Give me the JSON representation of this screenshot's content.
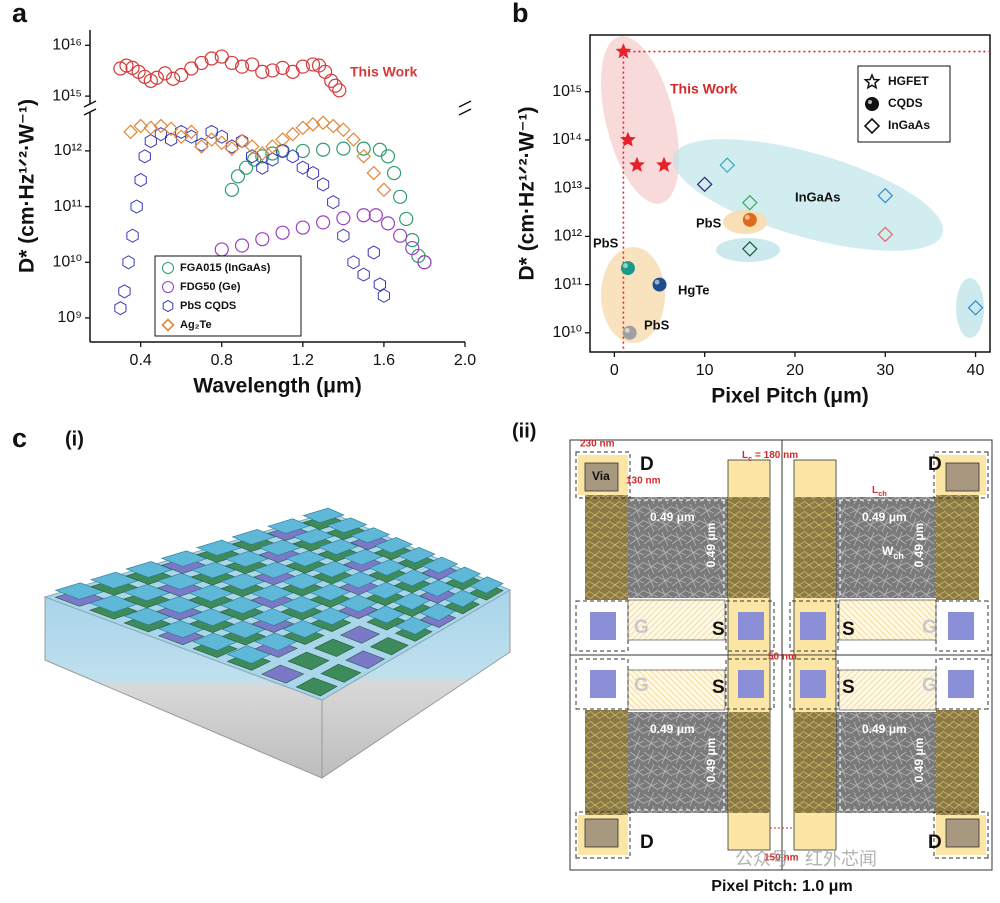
{
  "chart_data": [
    {
      "panel": "a",
      "type": "scatter",
      "xlabel": "Wavelength (μm)",
      "ylabel": "D* (cm·Hz¹ᐟ²·W⁻¹)",
      "xlim": [
        0.15,
        2.0
      ],
      "xticks": [
        0.4,
        0.8,
        1.2,
        1.6,
        {
          "value": 2,
          "label": "2.0"
        }
      ],
      "log_y": true,
      "ylim": [
        370000000.0,
        2e+16
      ],
      "ybreak": [
        5000000000000.0,
        700000000000000.0
      ],
      "yticks": [
        {
          "value": 1000000000.0,
          "label": "10⁹"
        },
        {
          "value": 10000000000.0,
          "label": "10¹⁰"
        },
        {
          "value": 100000000000.0,
          "label": "10¹¹"
        },
        {
          "value": 1000000000000.0,
          "label": "10¹²"
        },
        {
          "value": 1000000000000000.0,
          "label": "10¹⁵"
        },
        {
          "value": 1e+16,
          "label": "10¹⁶"
        }
      ],
      "series": [
        {
          "name": "This Work",
          "direct_label": true,
          "marker": "circle",
          "color": "#d43a3a",
          "x": [
            0.3,
            0.33,
            0.36,
            0.39,
            0.42,
            0.45,
            0.48,
            0.52,
            0.56,
            0.6,
            0.65,
            0.7,
            0.75,
            0.8,
            0.85,
            0.9,
            0.95,
            1.0,
            1.05,
            1.1,
            1.15,
            1.2,
            1.25,
            1.28,
            1.31,
            1.34,
            1.36,
            1.38
          ],
          "values": [
            3500000000000000.0,
            4000000000000000.0,
            3600000000000000.0,
            3000000000000000.0,
            2400000000000000.0,
            2000000000000000.0,
            2300000000000000.0,
            2800000000000000.0,
            2200000000000000.0,
            2600000000000000.0,
            3500000000000000.0,
            4500000000000000.0,
            5500000000000000.0,
            6000000000000000.0,
            4500000000000000.0,
            3800000000000000.0,
            4200000000000000.0,
            3000000000000000.0,
            3200000000000000.0,
            3600000000000000.0,
            3000000000000000.0,
            3800000000000000.0,
            4200000000000000.0,
            4000000000000000.0,
            3000000000000000.0,
            2000000000000000.0,
            1600000000000000.0,
            1300000000000000.0
          ]
        },
        {
          "name": "FGA015 (InGaAs)",
          "marker": "circle",
          "color": "#2e9e6e",
          "x": [
            0.85,
            0.88,
            0.92,
            0.96,
            1.0,
            1.05,
            1.1,
            1.2,
            1.3,
            1.4,
            1.5,
            1.58,
            1.62,
            1.65,
            1.68,
            1.71,
            1.74,
            1.77,
            1.8
          ],
          "values": [
            200000000000.0,
            350000000000.0,
            500000000000.0,
            700000000000.0,
            800000000000.0,
            900000000000.0,
            1000000000000.0,
            1000000000000.0,
            1050000000000.0,
            1100000000000.0,
            1100000000000.0,
            1050000000000.0,
            800000000000.0,
            400000000000.0,
            150000000000.0,
            60000000000.0,
            25000000000.0,
            13000000000.0,
            10000000000.0
          ]
        },
        {
          "name": "FDG50 (Ge)",
          "marker": "circle",
          "color": "#9b3fc4",
          "x": [
            0.8,
            0.9,
            1.0,
            1.1,
            1.2,
            1.3,
            1.4,
            1.5,
            1.56,
            1.62,
            1.68,
            1.74,
            1.8
          ],
          "values": [
            17000000000.0,
            20000000000.0,
            26000000000.0,
            34000000000.0,
            42000000000.0,
            52000000000.0,
            62000000000.0,
            70000000000.0,
            70000000000.0,
            50000000000.0,
            30000000000.0,
            18000000000.0,
            10000000000.0
          ]
        },
        {
          "name": "PbS CQDS",
          "marker": "hexagon",
          "color": "#3a3ab8",
          "x": [
            0.3,
            0.32,
            0.34,
            0.36,
            0.38,
            0.4,
            0.42,
            0.45,
            0.5,
            0.55,
            0.6,
            0.65,
            0.7,
            0.75,
            0.8,
            0.85,
            0.9,
            0.95,
            1.0,
            1.05,
            1.1,
            1.15,
            1.2,
            1.25,
            1.3,
            1.35,
            1.4,
            1.45,
            1.5,
            1.55,
            1.58,
            1.6
          ],
          "values": [
            1500000000.0,
            3000000000.0,
            10000000000.0,
            30000000000.0,
            100000000000.0,
            300000000000.0,
            800000000000.0,
            1500000000000.0,
            2000000000000.0,
            1600000000000.0,
            2200000000000.0,
            1800000000000.0,
            1300000000000.0,
            2200000000000.0,
            1800000000000.0,
            1200000000000.0,
            1500000000000.0,
            800000000000.0,
            500000000000.0,
            700000000000.0,
            1000000000000.0,
            800000000000.0,
            500000000000.0,
            400000000000.0,
            250000000000.0,
            120000000000.0,
            30000000000.0,
            10000000000.0,
            6000000000.0,
            15000000000.0,
            4000000000.0,
            2500000000.0
          ]
        },
        {
          "name": "Ag₂Te",
          "marker": "diamond",
          "color": "#e0883a",
          "x": [
            0.35,
            0.4,
            0.45,
            0.5,
            0.55,
            0.6,
            0.65,
            0.7,
            0.75,
            0.8,
            0.85,
            0.9,
            0.95,
            1.0,
            1.05,
            1.1,
            1.15,
            1.2,
            1.25,
            1.3,
            1.35,
            1.4,
            1.45,
            1.5,
            1.55,
            1.6
          ],
          "values": [
            2200000000000.0,
            2800000000000.0,
            2600000000000.0,
            2800000000000.0,
            2500000000000.0,
            1800000000000.0,
            2200000000000.0,
            1200000000000.0,
            1600000000000.0,
            1400000000000.0,
            1100000000000.0,
            1500000000000.0,
            1200000000000.0,
            900000000000.0,
            1200000000000.0,
            1600000000000.0,
            2000000000000.0,
            2600000000000.0,
            3000000000000.0,
            3200000000000.0,
            2800000000000.0,
            2400000000000.0,
            1600000000000.0,
            800000000000.0,
            400000000000.0,
            200000000000.0
          ]
        }
      ]
    },
    {
      "panel": "b",
      "type": "scatter",
      "xlabel": "Pixel Pitch (μm)",
      "ylabel": "D* (cm·Hz¹ᐟ²·W⁻¹)",
      "xlim": [
        -2.7,
        41.6
      ],
      "xticks": [
        0,
        10,
        20,
        30,
        40
      ],
      "log_y": true,
      "ylim": [
        4000000000.0,
        1.5e+16
      ],
      "yticks": [
        {
          "value": 10000000000.0,
          "label": "10¹⁰"
        },
        {
          "value": 100000000000.0,
          "label": "10¹¹"
        },
        {
          "value": 1000000000000.0,
          "label": "10¹²"
        },
        {
          "value": 10000000000000.0,
          "label": "10¹³"
        },
        {
          "value": 100000000000000.0,
          "label": "10¹⁴"
        },
        {
          "value": 1000000000000000.0,
          "label": "10¹⁵"
        }
      ],
      "legend": "upper right",
      "annotations": [
        "This Work",
        "InGaAs",
        "PbS",
        "PbS",
        "PbS",
        "HgTe"
      ],
      "series": [
        {
          "name": "HGFET",
          "marker": "star",
          "color": "#111111",
          "colors": [
            "#e8202a",
            "#e8202a",
            "#e8202a",
            "#e8202a"
          ],
          "x": [
            1,
            1.5,
            2.5,
            5.5
          ],
          "values": [
            6800000000000000.0,
            100000000000000.0,
            30000000000000.0,
            30000000000000.0
          ]
        },
        {
          "name": "CQDS",
          "marker": "sphere",
          "color": "#111111",
          "colors": [
            "#1a9a8a",
            "#1f4e8c",
            "#a0a0a0",
            "#e06a1a"
          ],
          "x": [
            1.5,
            5,
            1.7,
            15
          ],
          "values": [
            220000000000.0,
            100000000000.0,
            10000000000.0,
            2200000000000.0
          ]
        },
        {
          "name": "InGaAs",
          "marker": "diamond",
          "color": "#111111",
          "colors": [
            "#3aa8c8",
            "#2a2a6e",
            "#3aa860",
            "#1e5a38",
            "#2a8ad0",
            "#d86a6a",
            "#2a8ad0"
          ],
          "x": [
            12.5,
            10,
            15,
            15,
            30,
            30,
            40
          ],
          "values": [
            30000000000000.0,
            12000000000000.0,
            5000000000000.0,
            550000000000.0,
            7000000000000.0,
            1100000000000.0,
            33000000000.0
          ]
        }
      ]
    }
  ],
  "figure_c": {
    "panel": "c",
    "part_i": "(i)",
    "part_ii": "(ii)",
    "layout": {
      "via": "Via",
      "via_width": "230 nm",
      "via_height": "130 nm",
      "lc": {
        "main": "L",
        "sub": "c",
        "rest": " = 180 nm"
      },
      "lch": {
        "main": "L",
        "sub": "ch"
      },
      "wch": {
        "main": "W",
        "sub": "ch"
      },
      "gap_vertical": "50 nm",
      "gap_horizontal": "150 nm",
      "drain": [
        "D",
        "D",
        "D",
        "D"
      ],
      "source": [
        "S",
        "S",
        "S",
        "S"
      ],
      "gate": [
        "G",
        "G",
        "G",
        "G"
      ],
      "channel_width": [
        "0.49 μm",
        "0.49 μm",
        "0.49 μm",
        "0.49 μm"
      ],
      "channel_length": [
        "0.49 μm",
        "0.49 μm",
        "0.49 μm",
        "0.49 μm"
      ],
      "caption": "Pixel Pitch: 1.0 μm"
    },
    "watermark": "公众号 · 红外芯闻"
  }
}
